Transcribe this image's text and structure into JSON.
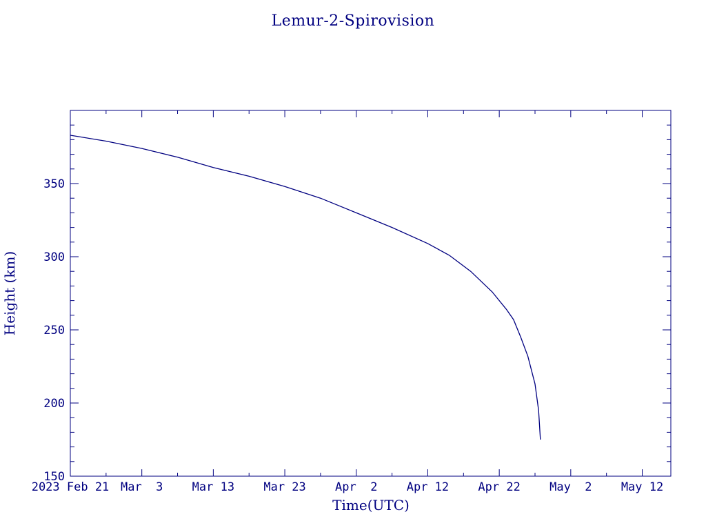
{
  "chart_data": {
    "type": "line",
    "title": "Lemur-2-Spirovision",
    "xlabel": "Time(UTC)",
    "ylabel": "Height (km)",
    "x_range": [
      "2023-02-21",
      "2023-05-16"
    ],
    "ylim": [
      150,
      400
    ],
    "grid": false,
    "x_ticks": [
      {
        "date": "2023-02-21",
        "label": "2023 Feb 21"
      },
      {
        "date": "2023-03-03",
        "label": "Mar  3"
      },
      {
        "date": "2023-03-13",
        "label": "Mar 13"
      },
      {
        "date": "2023-03-23",
        "label": "Mar 23"
      },
      {
        "date": "2023-04-02",
        "label": "Apr  2"
      },
      {
        "date": "2023-04-12",
        "label": "Apr 12"
      },
      {
        "date": "2023-04-22",
        "label": "Apr 22"
      },
      {
        "date": "2023-05-02",
        "label": "May  2"
      },
      {
        "date": "2023-05-12",
        "label": "May 12"
      }
    ],
    "y_ticks": [
      {
        "value": 150,
        "label": "150"
      },
      {
        "value": 200,
        "label": "200"
      },
      {
        "value": 250,
        "label": "250"
      },
      {
        "value": 300,
        "label": "300"
      },
      {
        "value": 350,
        "label": "350"
      }
    ],
    "series": [
      {
        "color": "#000080",
        "points": [
          {
            "x": "2023-02-21",
            "y": 383
          },
          {
            "x": "2023-02-26",
            "y": 379
          },
          {
            "x": "2023-03-03",
            "y": 374
          },
          {
            "x": "2023-03-08",
            "y": 368
          },
          {
            "x": "2023-03-13",
            "y": 361
          },
          {
            "x": "2023-03-18",
            "y": 355
          },
          {
            "x": "2023-03-23",
            "y": 348
          },
          {
            "x": "2023-03-28",
            "y": 340
          },
          {
            "x": "2023-04-02",
            "y": 330
          },
          {
            "x": "2023-04-07",
            "y": 320
          },
          {
            "x": "2023-04-12",
            "y": 309
          },
          {
            "x": "2023-04-15",
            "y": 301
          },
          {
            "x": "2023-04-18",
            "y": 290
          },
          {
            "x": "2023-04-21",
            "y": 276
          },
          {
            "x": "2023-04-23",
            "y": 264
          },
          {
            "x": "2023-04-24",
            "y": 257
          },
          {
            "x": "2023-04-25",
            "y": 245
          },
          {
            "x": "2023-04-26",
            "y": 232
          },
          {
            "x": "2023-04-27",
            "y": 213
          },
          {
            "x": "2023-04-27 12:00",
            "y": 195
          },
          {
            "x": "2023-04-27 18:00",
            "y": 175
          }
        ]
      }
    ]
  }
}
